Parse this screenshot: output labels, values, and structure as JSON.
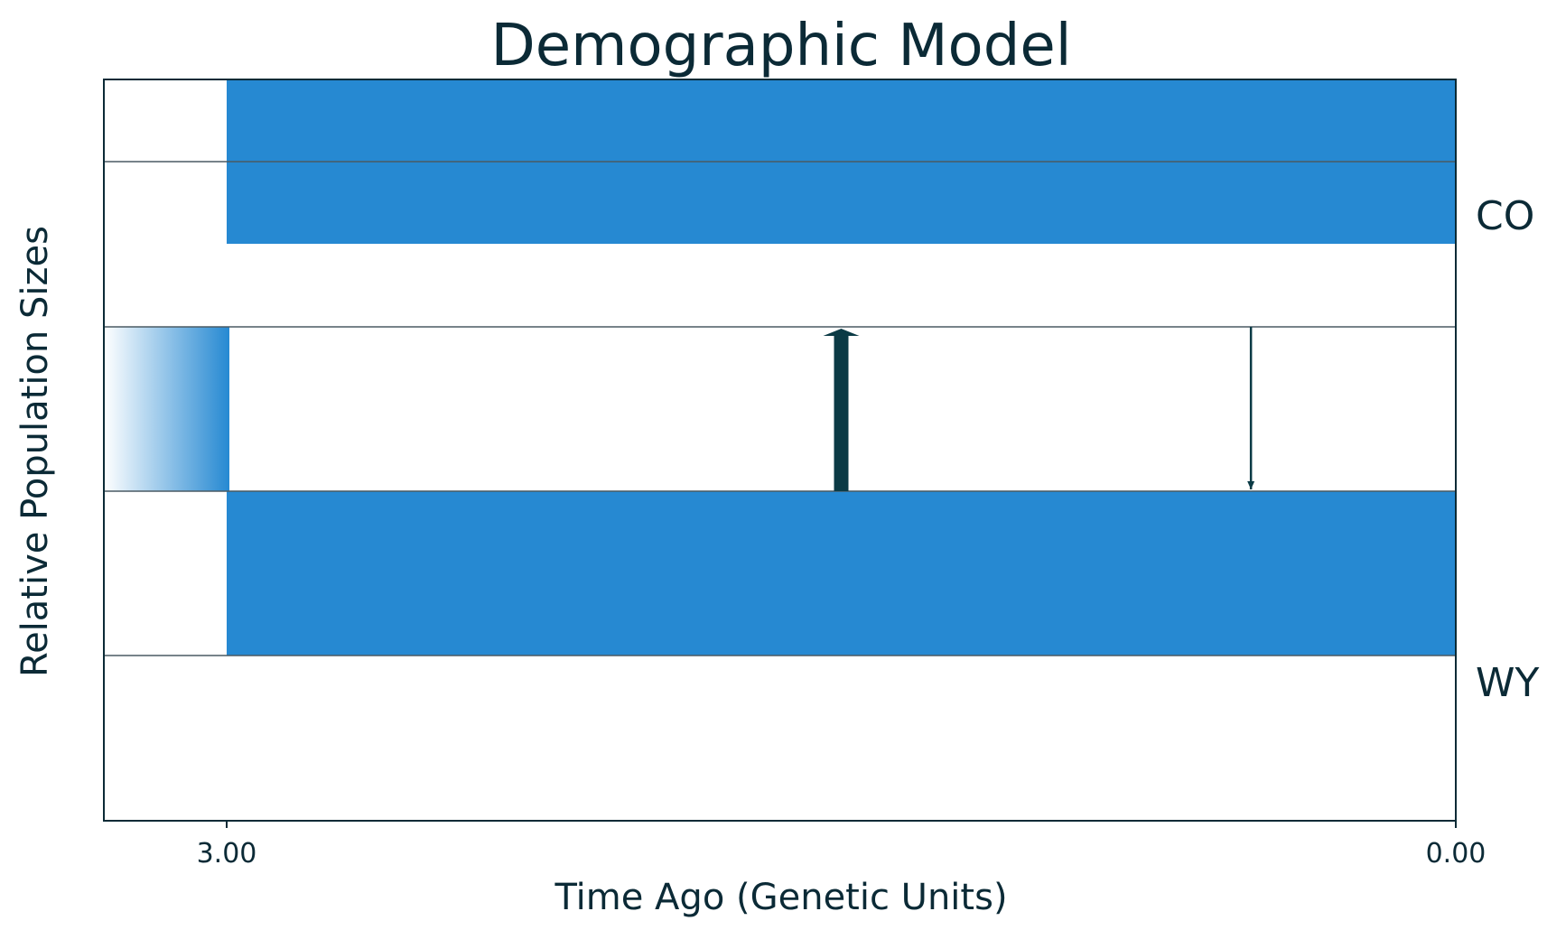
{
  "chart_data": {
    "type": "demographic-model",
    "title": "Demographic Model",
    "xlabel": "Time Ago (Genetic Units)",
    "ylabel": "Relative Population Sizes",
    "x_ticks": [
      {
        "value": 3.0,
        "label": "3.00"
      },
      {
        "value": 0.0,
        "label": "0.00"
      }
    ],
    "x_direction": "reversed",
    "populations": [
      {
        "name": "CO",
        "relative_size": 1.0,
        "start_time": 3.0,
        "end_time": 0.0
      },
      {
        "name": "WY",
        "relative_size": 1.0,
        "start_time": 3.0,
        "end_time": 0.0
      }
    ],
    "ancestral_population": {
      "relative_size": 1.0,
      "split_time": 3.0
    },
    "migrations": [
      {
        "from": "WY",
        "to": "CO",
        "time": 1.5,
        "strength": "strong"
      },
      {
        "from": "CO",
        "to": "WY",
        "time": 0.5,
        "strength": "weak"
      }
    ],
    "colors": {
      "population_fill": "#2689d2",
      "text": "#0b2a36",
      "arrow": "#0b3a45",
      "grid_line": "#4a5a63",
      "frame": "#0b2a36"
    }
  }
}
